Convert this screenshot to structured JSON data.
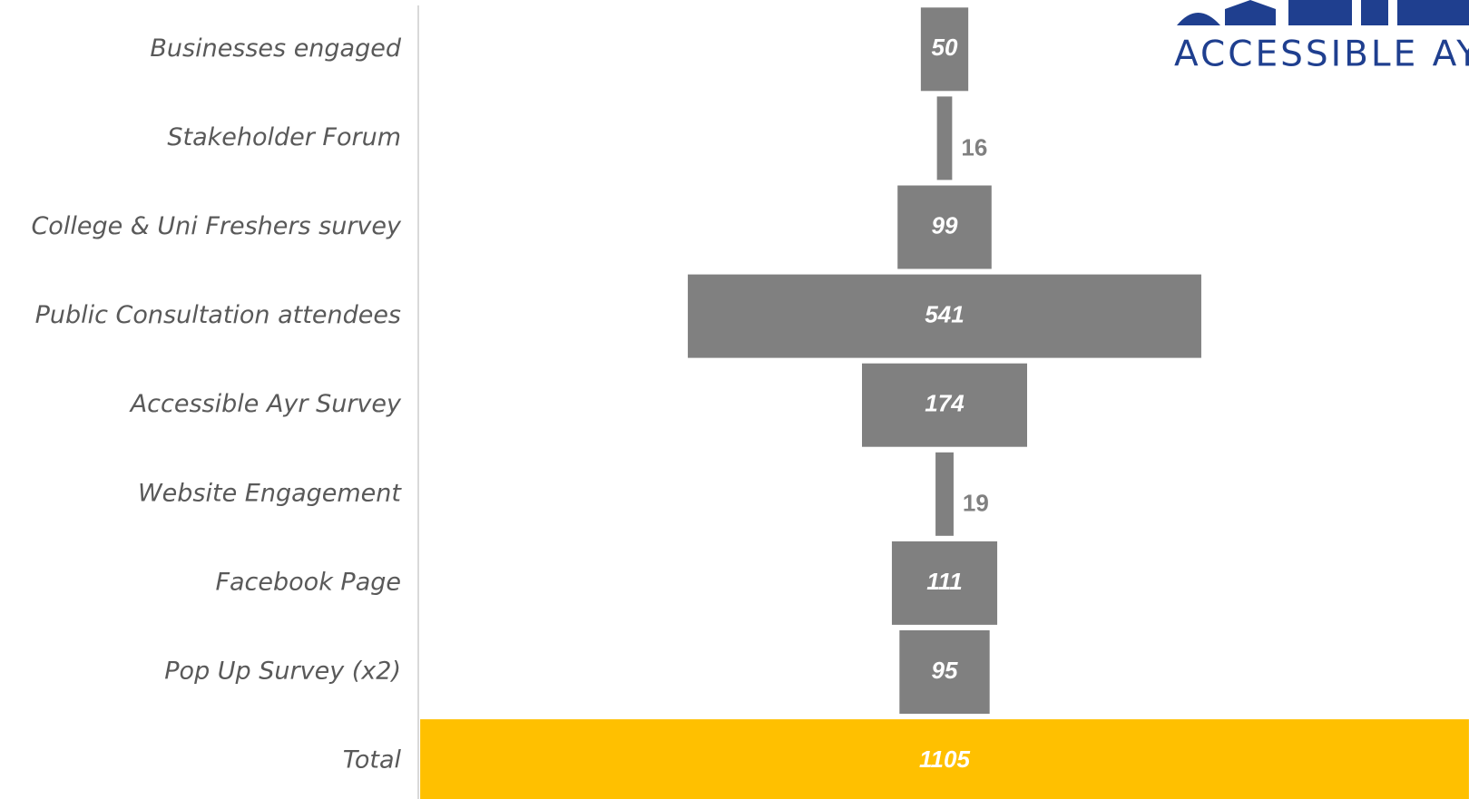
{
  "chart_data": {
    "type": "funnel",
    "categories": [
      "Businesses engaged",
      "Stakeholder Forum",
      "College & Uni Freshers survey",
      "Public Consultation attendees",
      "Accessible Ayr Survey",
      "Website Engagement",
      "Facebook Page",
      "Pop Up Survey (x2)",
      "Total"
    ],
    "values": [
      50,
      16,
      99,
      541,
      174,
      19,
      111,
      95,
      1105
    ],
    "colors": [
      "#808080",
      "#808080",
      "#808080",
      "#808080",
      "#808080",
      "#808080",
      "#808080",
      "#808080",
      "#ffc000"
    ],
    "logo_text": "ACCESSIBLE AY"
  }
}
